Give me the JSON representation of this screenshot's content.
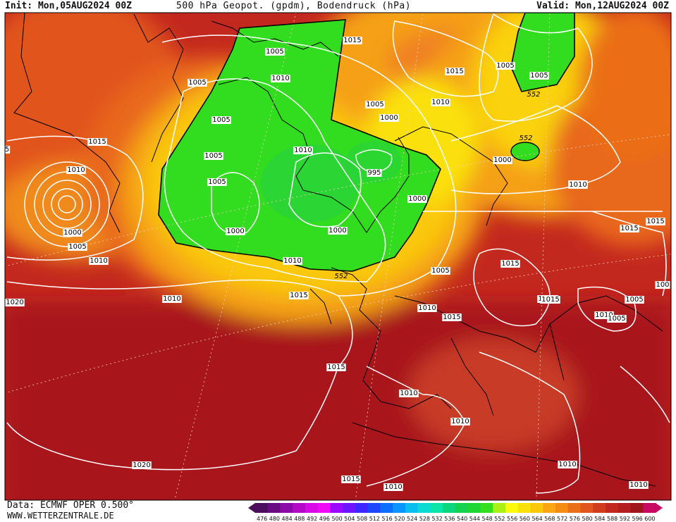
{
  "header": {
    "init": "Init: Mon,05AUG2024 00Z",
    "title": "500 hPa Geopot. (gpdm), Bodendruck (hPa)",
    "valid": "Valid: Mon,12AUG2024 00Z"
  },
  "footer": {
    "source": "Data: ECMWF OPER 0.500°",
    "website": "WWW.WETTERZENTRALE.DE"
  },
  "colorbar": {
    "ticks": [
      "476",
      "480",
      "484",
      "488",
      "492",
      "496",
      "500",
      "504",
      "508",
      "512",
      "516",
      "520",
      "524",
      "528",
      "532",
      "536",
      "540",
      "544",
      "548",
      "552",
      "556",
      "560",
      "564",
      "568",
      "572",
      "576",
      "580",
      "584",
      "588",
      "592",
      "596",
      "600"
    ],
    "colors": [
      "#4b0f5e",
      "#6a0d84",
      "#8e0aa8",
      "#b40ac8",
      "#d80ae8",
      "#f00af5",
      "#9a0aff",
      "#6e14ff",
      "#3c28ff",
      "#1e46ff",
      "#0a6eff",
      "#0a96ff",
      "#0abef0",
      "#0adcd2",
      "#0ae6aa",
      "#0ad77d",
      "#14d250",
      "#1ed732",
      "#32e01e",
      "#aaf014",
      "#fafa0a",
      "#fae10a",
      "#fac80a",
      "#faa514",
      "#f58c14",
      "#eb6e19",
      "#e1551e",
      "#d23c1e",
      "#c3281e",
      "#b41e1e",
      "#a0141e",
      "#c80a64"
    ]
  },
  "pressure_labels": [
    {
      "text": "1005"
    },
    {
      "text": "1015"
    },
    {
      "text": "1005"
    },
    {
      "text": "1005"
    },
    {
      "text": "1010"
    },
    {
      "text": "1015"
    },
    {
      "text": "1005"
    },
    {
      "text": "1010"
    },
    {
      "text": "1005"
    },
    {
      "text": "1000"
    },
    {
      "text": "1005"
    },
    {
      "text": "1010"
    },
    {
      "text": "995"
    },
    {
      "text": "1000"
    },
    {
      "text": "1000"
    },
    {
      "text": "1000"
    },
    {
      "text": "1010"
    },
    {
      "text": "1010"
    },
    {
      "text": "1015"
    },
    {
      "text": "1010"
    },
    {
      "text": "1000"
    },
    {
      "text": "1005"
    },
    {
      "text": "1005"
    },
    {
      "text": "1010"
    },
    {
      "text": "1015"
    },
    {
      "text": "1020"
    },
    {
      "text": "1010"
    },
    {
      "text": "1015"
    },
    {
      "text": "1005"
    },
    {
      "text": "1015"
    },
    {
      "text": "1010"
    },
    {
      "text": "1015"
    },
    {
      "text": "1015"
    },
    {
      "text": "1015"
    },
    {
      "text": "1015"
    },
    {
      "text": "1000"
    },
    {
      "text": "1005"
    },
    {
      "text": "1010"
    },
    {
      "text": "1005"
    },
    {
      "text": "1015"
    },
    {
      "text": "1010"
    },
    {
      "text": "1010"
    },
    {
      "text": "1010"
    },
    {
      "text": "1015"
    },
    {
      "text": "1010"
    },
    {
      "text": "1020"
    },
    {
      "text": "1010"
    },
    {
      "text": "1010"
    },
    {
      "text": "1005"
    },
    {
      "text": "1010"
    },
    {
      "text": "1015"
    },
    {
      "text": "1010"
    },
    {
      "text": "100"
    },
    {
      "text": "5"
    }
  ],
  "geopot_labels": [
    "552",
    "552",
    "552",
    "552"
  ]
}
